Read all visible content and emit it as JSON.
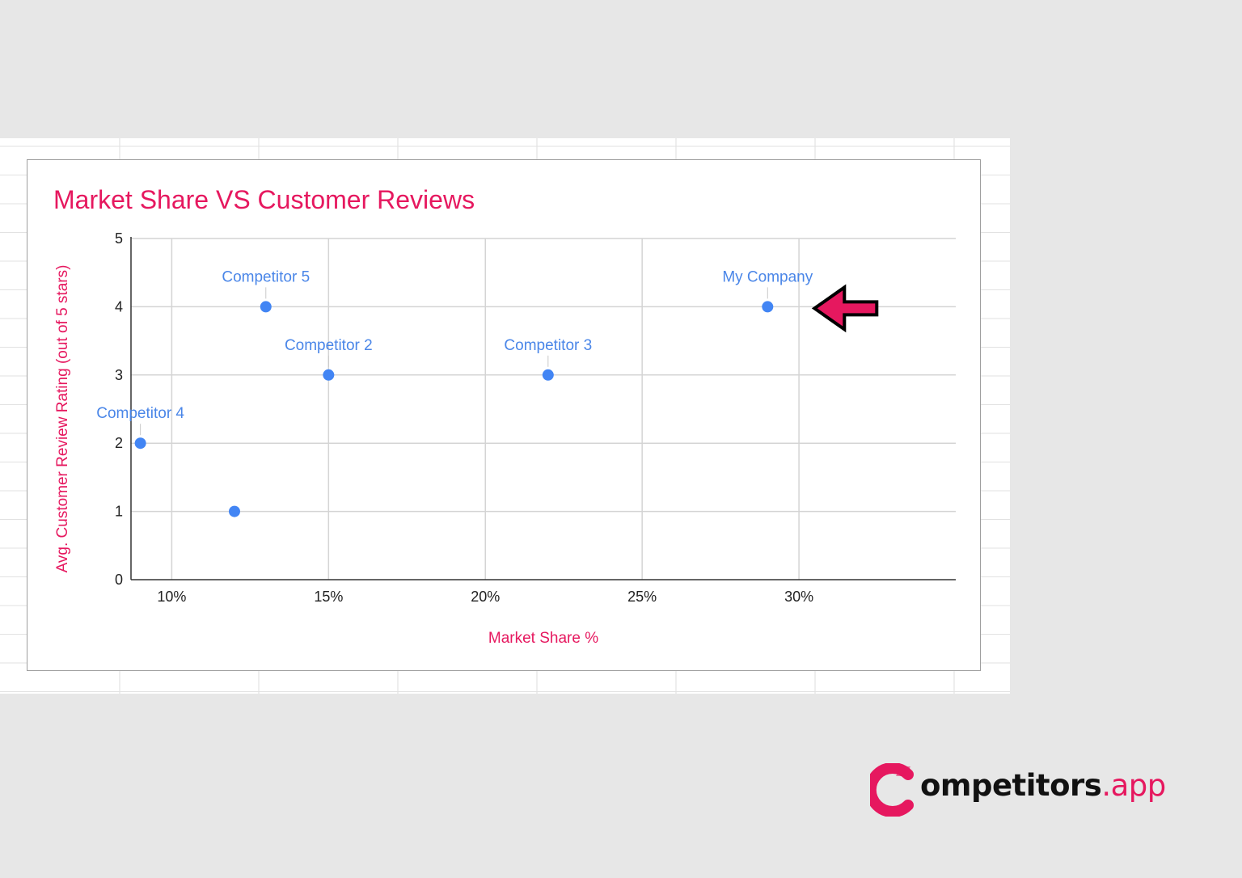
{
  "colors": {
    "accent": "#e6185f",
    "point": "#4285f4",
    "point_label": "#4a86e8",
    "grid": "#d4d4d4",
    "axis": "#333333",
    "arrow_fill": "#e6185f",
    "arrow_stroke": "#000000"
  },
  "annotation": {
    "type": "arrow-left",
    "target": "My Company"
  },
  "logo": {
    "word": "ompetitors",
    "tld": ".app",
    "icon": "c-logo-icon"
  },
  "chart_data": {
    "type": "scatter",
    "title": "Market Share VS Customer Reviews",
    "xlabel": "Market Share %",
    "ylabel": "Avg. Customer Review Rating (out of 5 stars)",
    "xlim": [
      8.7,
      35
    ],
    "ylim": [
      0,
      5
    ],
    "x_ticks": [
      10,
      15,
      20,
      25,
      30
    ],
    "x_tick_labels": [
      "10%",
      "15%",
      "20%",
      "25%",
      "30%"
    ],
    "y_ticks": [
      0,
      1,
      2,
      3,
      4,
      5
    ],
    "y_tick_labels": [
      "0",
      "1",
      "2",
      "3",
      "4",
      "5"
    ],
    "grid": true,
    "legend": "none",
    "points": [
      {
        "label": "Competitor 4",
        "x": 9,
        "y": 2
      },
      {
        "label": "",
        "x": 12,
        "y": 1
      },
      {
        "label": "Competitor 5",
        "x": 13,
        "y": 4
      },
      {
        "label": "Competitor 2",
        "x": 15,
        "y": 3
      },
      {
        "label": "Competitor 3",
        "x": 22,
        "y": 3
      },
      {
        "label": "My Company",
        "x": 29,
        "y": 4
      }
    ]
  }
}
